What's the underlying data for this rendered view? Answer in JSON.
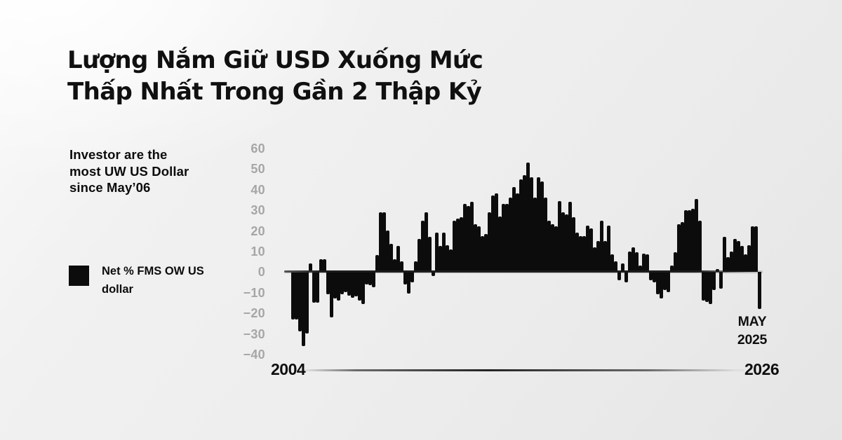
{
  "title": {
    "lines": [
      "Lượng Nắm Giữ USD Xuống Mức",
      "Thấp Nhất Trong Gần 2 Thập Kỷ"
    ]
  },
  "subtitle": {
    "lines": [
      "Investor are the",
      "most UW US Dollar",
      "since May’06"
    ]
  },
  "legend": {
    "swatch_color": "#0c0c0c",
    "lines": [
      "Net % FMS OW US",
      "dollar"
    ]
  },
  "annotation": {
    "lines": [
      "MAY",
      "2025"
    ]
  },
  "x_axis": {
    "start_label": "2004",
    "end_label": "2026"
  },
  "y_axis": {
    "tick_labels": [
      "60",
      "50",
      "40",
      "30",
      "20",
      "10",
      "0",
      "−10",
      "−20",
      "−30",
      "−40"
    ]
  },
  "colors": {
    "bar": "#0c0c0c",
    "axis_tick_text": "#a6a6a6",
    "text": "#101010",
    "background": "#ededed"
  },
  "chart_data": {
    "type": "bar",
    "title": "Lượng Nắm Giữ USD Xuống Mức Thấp Nhất Trong Gần 2 Thập Kỷ",
    "subtitle_note": "Investor are the most UW US Dollar since May’06",
    "xlabel": "",
    "ylabel": "Net % FMS OW US dollar",
    "ylim": [
      -40,
      60
    ],
    "y_ticks": [
      60,
      50,
      40,
      30,
      20,
      10,
      0,
      -10,
      -20,
      -30,
      -40
    ],
    "x_range": {
      "start_year": 2004,
      "end_year": 2025.42,
      "axis_end_label_year": 2026,
      "note": "133 evenly spaced survey samples from 2004 to May 2025"
    },
    "grid": false,
    "legend_position": "left",
    "annotations": [
      {
        "text": "MAY 2025",
        "x": 2025.42,
        "y": -18
      }
    ],
    "series": [
      {
        "name": "Net % FMS OW US dollar",
        "color": "#0c0c0c",
        "values": [
          -23,
          -23,
          -29,
          -36,
          -30,
          4,
          -15,
          -15,
          6,
          6,
          -11,
          -22,
          -13,
          -14,
          -11,
          -10,
          -11.5,
          -12.5,
          -12,
          -14,
          -15.5,
          -6,
          -6.5,
          -7.5,
          8,
          29,
          29,
          20,
          13.5,
          6,
          12.5,
          5,
          -6,
          -10.5,
          -5,
          5,
          16,
          25,
          29,
          17,
          -2,
          19,
          12.5,
          19,
          13,
          11,
          25,
          26,
          26.5,
          33,
          32,
          34,
          23,
          22,
          17.5,
          18.5,
          29,
          37,
          38,
          27,
          33,
          33,
          36,
          41,
          38,
          45,
          47,
          53,
          46,
          36,
          46,
          44,
          36,
          25,
          23,
          22,
          34.5,
          29,
          28,
          34,
          26.5,
          19,
          17.5,
          17.5,
          22.5,
          21,
          12,
          15,
          25,
          15,
          22.5,
          8.5,
          5,
          -4,
          4,
          -5,
          10,
          12,
          9.5,
          3,
          9,
          8.5,
          -4,
          -5,
          -11,
          -13,
          -9,
          -10,
          3,
          9.5,
          23,
          24,
          30,
          30,
          30.5,
          35.5,
          25,
          -14,
          -14.5,
          -15.5,
          -9,
          1.5,
          -8,
          17,
          7,
          10,
          16,
          15,
          12.5,
          8.5,
          13,
          22,
          22,
          -18
        ]
      }
    ]
  }
}
